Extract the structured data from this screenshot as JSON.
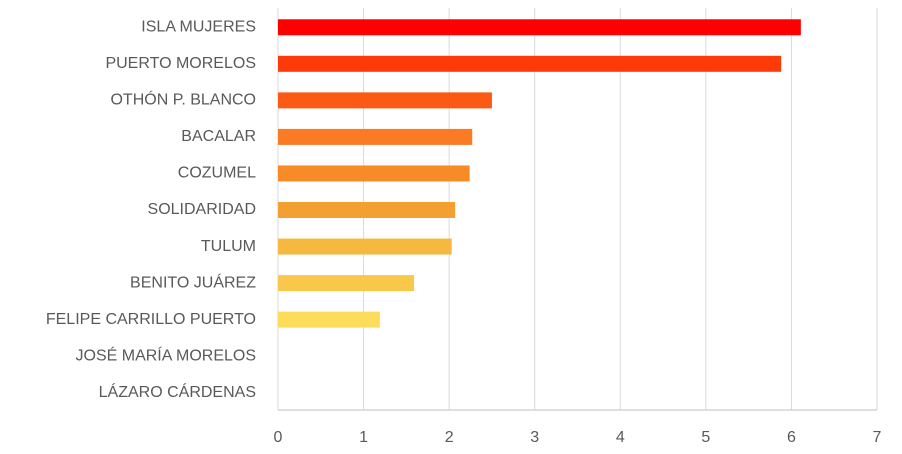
{
  "chart_data": {
    "type": "bar",
    "orientation": "horizontal",
    "categories": [
      "ISLA MUJERES",
      "PUERTO MORELOS",
      "OTHÓN P. BLANCO",
      "BACALAR",
      "COZUMEL",
      "SOLIDARIDAD",
      "TULUM",
      "BENITO JUÁREZ",
      "FELIPE CARRILLO PUERTO",
      "JOSÉ MARÍA MORELOS",
      "LÁZARO CÁRDENAS"
    ],
    "values": [
      6.11,
      5.88,
      2.5,
      2.27,
      2.24,
      2.07,
      2.03,
      1.59,
      1.19,
      0,
      0
    ],
    "colors": [
      "#fe0000",
      "#ff3a0a",
      "#fc5a14",
      "#fb7a24",
      "#f98a28",
      "#f3a030",
      "#f7b840",
      "#f9c84a",
      "#fcdc5a",
      "#fde466",
      "#fdea70"
    ],
    "xlim": [
      0,
      7
    ],
    "xticks": [
      0,
      1,
      2,
      3,
      4,
      5,
      6,
      7
    ],
    "grid": true
  }
}
